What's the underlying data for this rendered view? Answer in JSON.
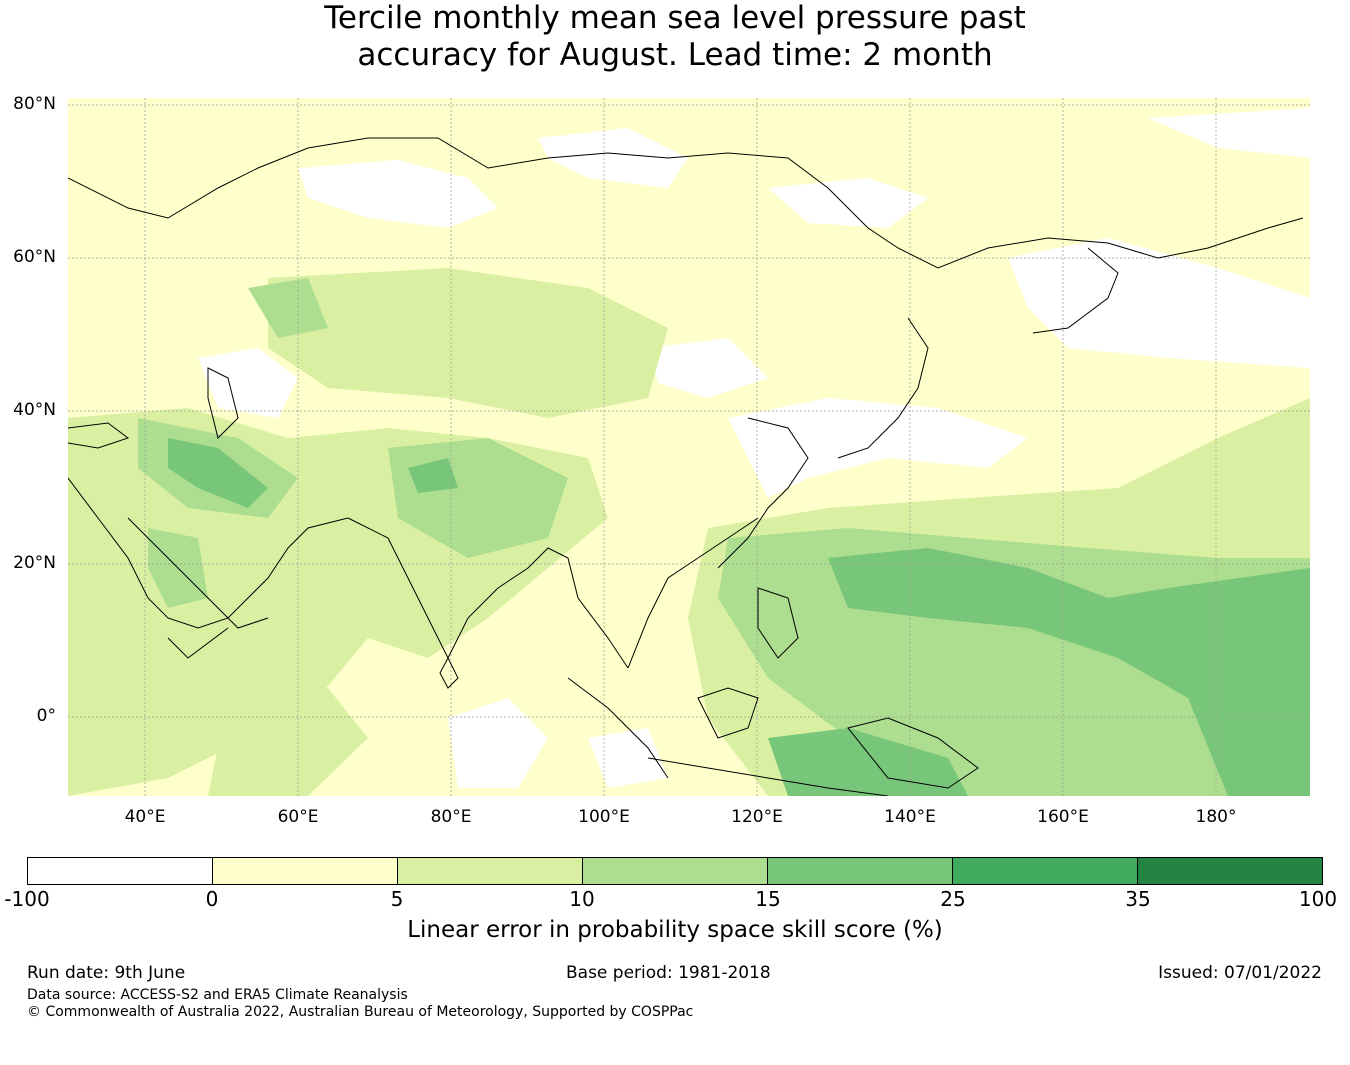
{
  "title_line1": "Tercile monthly mean sea level pressure past",
  "title_line2": "accuracy for August. Lead time: 2 month",
  "map": {
    "lat_labels": [
      "80°N",
      "60°N",
      "40°N",
      "20°N",
      "0°"
    ],
    "lon_labels": [
      "40°E",
      "60°E",
      "80°E",
      "100°E",
      "120°E",
      "140°E",
      "160°E",
      "180°"
    ]
  },
  "colorbar": {
    "label": "Linear error in probability space skill score (%)",
    "ticks": [
      "-100",
      "0",
      "5",
      "10",
      "15",
      "25",
      "35",
      "100"
    ],
    "colors": [
      "#ffffff",
      "#ffffcc",
      "#d9f0a3",
      "#addd8e",
      "#78c679",
      "#41ab5d",
      "#238443"
    ]
  },
  "footer": {
    "run_date": "Run date: 9th June",
    "base_period": "Base period: 1981-2018",
    "issued": "Issued: 07/01/2022",
    "data_source": "Data source: ACCESS-S2 and ERA5 Climate Reanalysis",
    "copyright": "© Commonwealth of Australia 2022, Australian Bureau of Meteorology, Supported by COSPPac"
  }
}
